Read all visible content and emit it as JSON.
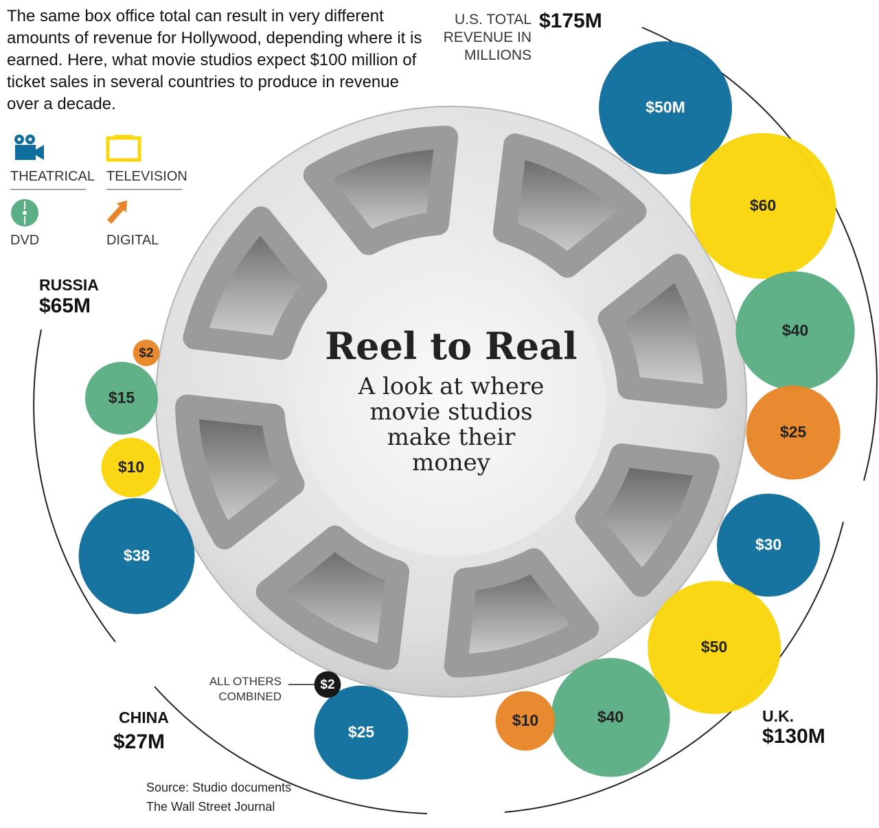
{
  "description": "The same box office total can result in very different amounts of revenue for Hollywood, depending where it is earned. Here, what movie studios expect $100 million of ticket sales in several countries to produce in revenue over a decade.",
  "chart_data": {
    "type": "bubble",
    "title": "Reel to Real",
    "subtitle": "A look at where movie studios make their money",
    "categories": [
      "U.S. TOTAL REVENUE IN MILLIONS",
      "U.K.",
      "CHINA",
      "RUSSIA"
    ],
    "totals": [
      175,
      130,
      27,
      65
    ],
    "total_labels": [
      "$175M",
      "$130M",
      "$27M",
      "$65M"
    ],
    "series": [
      {
        "name": "THEATRICAL",
        "color": "#0f6e9d",
        "values": [
          50,
          30,
          25,
          38
        ],
        "value_labels": [
          "$50M",
          "$30",
          "$25",
          "$38"
        ]
      },
      {
        "name": "TELEVISION",
        "color": "#fad60c",
        "values": [
          60,
          50,
          null,
          10
        ],
        "value_labels": [
          "$60",
          "$50",
          null,
          "$10"
        ]
      },
      {
        "name": "DVD",
        "color": "#5cae84",
        "values": [
          40,
          40,
          null,
          15
        ],
        "value_labels": [
          "$40",
          "$40",
          null,
          "$15"
        ]
      },
      {
        "name": "DIGITAL",
        "color": "#e8862a",
        "values": [
          25,
          10,
          null,
          2
        ],
        "value_labels": [
          "$25",
          "$10",
          null,
          "$2"
        ]
      },
      {
        "name": "ALL OTHERS COMBINED",
        "color": "#111111",
        "values": [
          null,
          null,
          2,
          null
        ],
        "value_labels": [
          null,
          null,
          "$2",
          null
        ]
      }
    ],
    "source": "Source: Studio documents",
    "credit": "The Wall Street Journal"
  }
}
